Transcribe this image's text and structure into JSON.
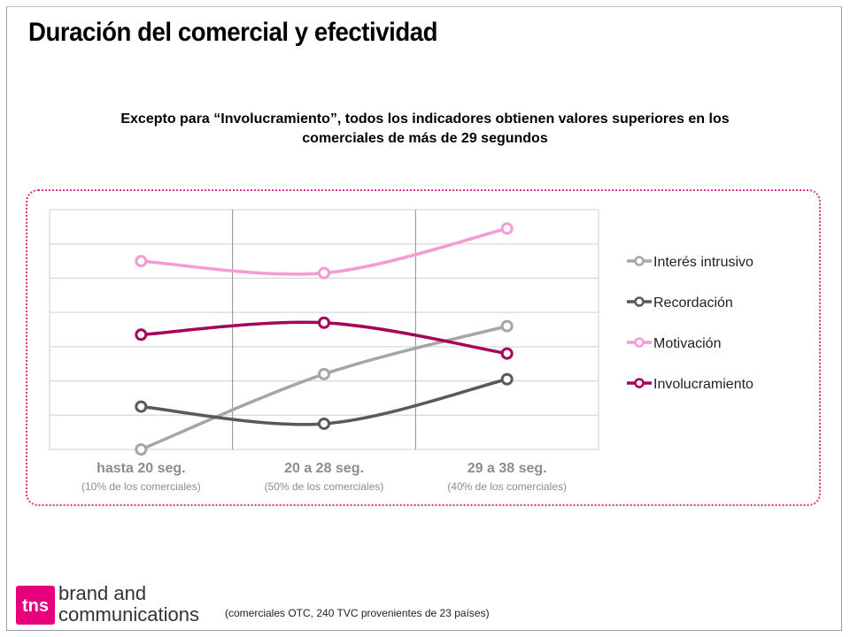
{
  "header": {
    "title": "Duración del comercial y efectividad",
    "subtitle_line1": "Excepto para “Involucramiento”, todos los indicadores obtienen valores superiores en los",
    "subtitle_line2": "comerciales de más de 29 segundos"
  },
  "chart_data": {
    "type": "line",
    "categories": [
      "hasta 20 seg.",
      "20 a 28 seg.",
      "29 a 38 seg."
    ],
    "category_subtitles": [
      "(10% de los comerciales)",
      "(50% de los comerciales)",
      "(40% de los comerciales)"
    ],
    "ylim": [
      0,
      7
    ],
    "grid": true,
    "legend_position": "right",
    "series": [
      {
        "name": "Interés intrusivo",
        "color": "#a6a6a6",
        "values": [
          0.0,
          2.2,
          3.6
        ]
      },
      {
        "name": "Recordación",
        "color": "#595959",
        "values": [
          1.25,
          0.75,
          2.05
        ]
      },
      {
        "name": "Motivación",
        "color": "#f59bd3",
        "values": [
          5.5,
          5.15,
          6.45
        ]
      },
      {
        "name": "Involucramiento",
        "color": "#a6005d",
        "values": [
          3.35,
          3.7,
          2.8
        ]
      }
    ]
  },
  "footer": {
    "footnote": "(comerciales OTC,  240 TVC  provenientes de 23  países)",
    "logo_mark": "tns",
    "logo_line1": "brand and",
    "logo_line2": "communications"
  }
}
